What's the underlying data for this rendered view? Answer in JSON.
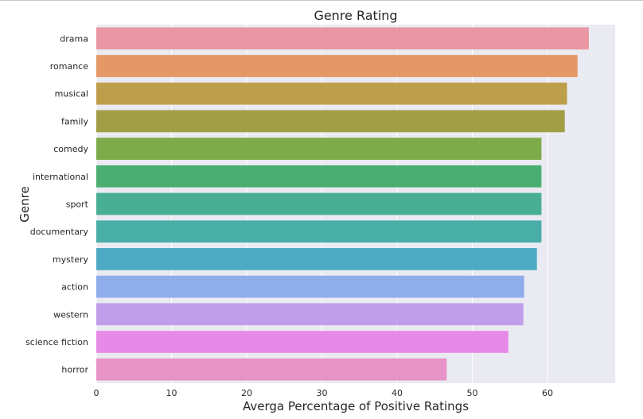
{
  "chart_data": {
    "type": "bar",
    "orientation": "horizontal",
    "title": "Genre Rating",
    "xlabel": "Averga Percentage of Positive Ratings",
    "ylabel": "Genre",
    "xlim": [
      0,
      69
    ],
    "xticks": [
      0,
      10,
      20,
      30,
      40,
      50,
      60
    ],
    "grid": true,
    "background": "#eaeaf2",
    "categories": [
      "drama",
      "romance",
      "musical",
      "family",
      "comedy",
      "international",
      "sport",
      "documentary",
      "mystery",
      "action",
      "western",
      "science fiction",
      "horror"
    ],
    "values": [
      65.5,
      64.0,
      62.6,
      62.3,
      59.2,
      59.2,
      59.2,
      59.2,
      58.6,
      56.9,
      56.8,
      54.8,
      46.6
    ],
    "colors": [
      "#ea96a3",
      "#e59866",
      "#bd9e4a",
      "#a19e45",
      "#7eab4a",
      "#4aae72",
      "#48af94",
      "#49ada8",
      "#4eaac2",
      "#8fadea",
      "#c09ee9",
      "#e78ae7",
      "#e893c7"
    ]
  }
}
